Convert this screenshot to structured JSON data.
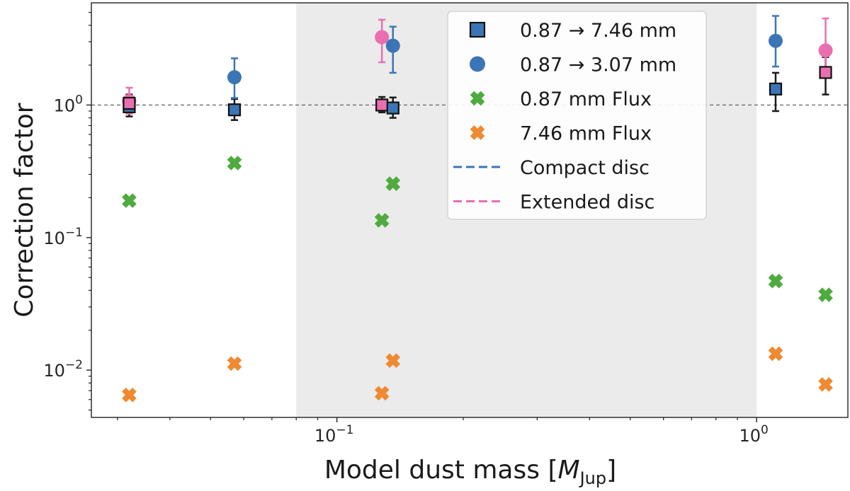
{
  "chart_data": {
    "type": "scatter",
    "title": "",
    "xlabel": "Model dust mass [",
    "xlabel_symbol": "M",
    "xlabel_subscript": "Jup",
    "xlabel_suffix": "]",
    "ylabel": "Correction factor",
    "xscale": "log",
    "yscale": "log",
    "xlim": [
      0.026,
      1.65
    ],
    "ylim": [
      0.0044,
      5.9
    ],
    "shaded_region": [
      0.08,
      1.0
    ],
    "reference_line_y": 1.0,
    "x_ticks": [
      {
        "value": 0.1,
        "base": "10",
        "exp": "−1"
      },
      {
        "value": 1.0,
        "base": "10",
        "exp": "0"
      }
    ],
    "y_ticks": [
      {
        "value": 0.01,
        "base": "10",
        "exp": "−2"
      },
      {
        "value": 0.1,
        "base": "10",
        "exp": "−1"
      },
      {
        "value": 1.0,
        "base": "10",
        "exp": "0"
      }
    ],
    "colors": {
      "compact": "#3c75b5",
      "extended": "#e96fb0",
      "flux087": "#4faa3f",
      "flux746": "#ef8a30",
      "errorbar_dark": "#1a1a1a",
      "shade": "#ebebeb"
    },
    "series": [
      {
        "name": "0.87 → 7.46 mm",
        "marker": "square",
        "points": [
          {
            "x": 0.032,
            "y": 0.97,
            "err_lo": 0.82,
            "err_hi": 1.17,
            "disc": "compact"
          },
          {
            "x": 0.032,
            "y": 1.03,
            "err_lo": 0.88,
            "err_hi": 1.2,
            "disc": "extended"
          },
          {
            "x": 0.057,
            "y": 0.92,
            "err_lo": 0.77,
            "err_hi": 1.11,
            "disc": "compact"
          },
          {
            "x": 0.128,
            "y": 1.0,
            "err_lo": 0.88,
            "err_hi": 1.15,
            "disc": "extended"
          },
          {
            "x": 0.136,
            "y": 0.95,
            "err_lo": 0.8,
            "err_hi": 1.14,
            "disc": "compact"
          },
          {
            "x": 1.11,
            "y": 1.32,
            "err_lo": 0.9,
            "err_hi": 1.75,
            "disc": "compact"
          },
          {
            "x": 1.46,
            "y": 1.76,
            "err_lo": 1.2,
            "err_hi": 2.3,
            "disc": "extended"
          }
        ]
      },
      {
        "name": "0.87 → 3.07 mm",
        "marker": "circle",
        "points": [
          {
            "x": 0.032,
            "y": 1.07,
            "err_lo": 0.86,
            "err_hi": 1.35,
            "disc": "extended"
          },
          {
            "x": 0.057,
            "y": 1.62,
            "err_lo": 1.13,
            "err_hi": 2.25,
            "disc": "compact"
          },
          {
            "x": 0.128,
            "y": 3.25,
            "err_lo": 2.1,
            "err_hi": 4.4,
            "disc": "extended"
          },
          {
            "x": 0.136,
            "y": 2.8,
            "err_lo": 1.75,
            "err_hi": 3.9,
            "disc": "compact"
          },
          {
            "x": 1.11,
            "y": 3.05,
            "err_lo": 1.95,
            "err_hi": 4.7,
            "disc": "compact"
          },
          {
            "x": 1.46,
            "y": 2.58,
            "err_lo": 1.75,
            "err_hi": 4.5,
            "disc": "extended"
          }
        ]
      },
      {
        "name": "0.87 mm Flux",
        "marker": "x",
        "color_key": "flux087",
        "points": [
          {
            "x": 0.032,
            "y": 0.19
          },
          {
            "x": 0.057,
            "y": 0.365
          },
          {
            "x": 0.128,
            "y": 0.135
          },
          {
            "x": 0.136,
            "y": 0.255
          },
          {
            "x": 1.11,
            "y": 0.047
          },
          {
            "x": 1.46,
            "y": 0.037
          }
        ]
      },
      {
        "name": "7.46 mm Flux",
        "marker": "x",
        "color_key": "flux746",
        "points": [
          {
            "x": 0.032,
            "y": 0.0065
          },
          {
            "x": 0.057,
            "y": 0.0112
          },
          {
            "x": 0.128,
            "y": 0.0067
          },
          {
            "x": 0.136,
            "y": 0.0118
          },
          {
            "x": 1.11,
            "y": 0.0133
          },
          {
            "x": 1.46,
            "y": 0.0078
          }
        ]
      }
    ],
    "legend": {
      "placement": "top-right",
      "entries": [
        {
          "label": "0.87 → 7.46 mm",
          "symbol": "square",
          "color_key": "compact"
        },
        {
          "label": "0.87 → 3.07 mm",
          "symbol": "circle",
          "color_key": "compact"
        },
        {
          "label": "0.87 mm Flux",
          "symbol": "x",
          "color_key": "flux087"
        },
        {
          "label": "7.46 mm Flux",
          "symbol": "x",
          "color_key": "flux746"
        },
        {
          "label": "Compact disc",
          "symbol": "dash",
          "color_key": "compact"
        },
        {
          "label": "Extended disc",
          "symbol": "dash",
          "color_key": "extended"
        }
      ]
    }
  }
}
